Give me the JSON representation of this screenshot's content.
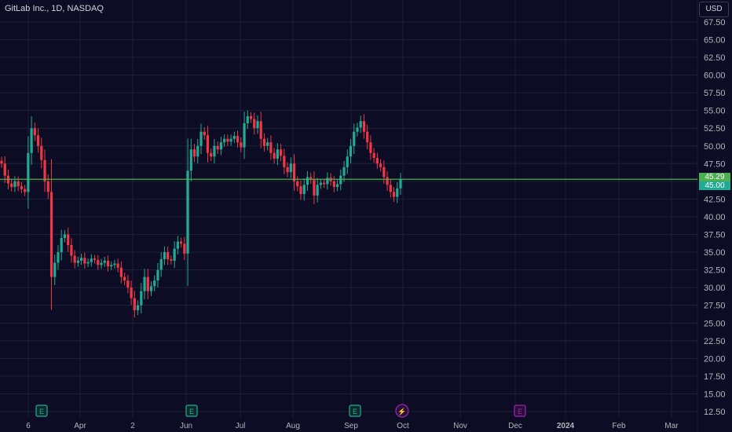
{
  "header": {
    "title": "GitLab Inc., 1D, NASDAQ",
    "currency": "USD"
  },
  "colors": {
    "background": "#0c0d24",
    "grid": "#1d2036",
    "up": "#22ab94",
    "down": "#f23645",
    "price_line": "#4caf50",
    "text": "#b2b5be",
    "earnings": "#22ab94",
    "dividend": "#9c27b0",
    "split": "#9c27b0"
  },
  "price_labels": {
    "last": "45.29",
    "close_marker": "45.00"
  },
  "events": [
    {
      "icon": "earnings-icon",
      "label": "E"
    },
    {
      "icon": "earnings-icon",
      "label": "E"
    },
    {
      "icon": "earnings-icon",
      "label": "E"
    },
    {
      "icon": "split-icon",
      "label": "⚡"
    },
    {
      "icon": "earnings-icon",
      "label": "E"
    }
  ],
  "chart_data": {
    "type": "candlestick",
    "title": "GitLab Inc., 1D, NASDAQ",
    "xlabel": "",
    "ylabel": "",
    "ylim": [
      11.5,
      69
    ],
    "y_ticks": [
      "12.50",
      "15.00",
      "17.50",
      "20.00",
      "22.50",
      "25.00",
      "27.50",
      "30.00",
      "32.50",
      "35.00",
      "37.50",
      "40.00",
      "42.50",
      "45.00",
      "47.50",
      "50.00",
      "52.50",
      "55.00",
      "57.50",
      "60.00",
      "62.50",
      "65.00",
      "67.50"
    ],
    "x_ticks": [
      "6",
      "Apr",
      "2",
      "Jun",
      "Jul",
      "Aug",
      "Sep",
      "Oct",
      "Nov",
      "Dec",
      "2024",
      "Feb",
      "Mar"
    ],
    "horizontal_line": 45.29,
    "grid": true,
    "series": [
      {
        "name": "GitLab",
        "closes": [
          47.5,
          45.8,
          44.7,
          44.2,
          45.0,
          44.3,
          43.9,
          43.5,
          49.0,
          52.5,
          51.5,
          50.0,
          48.0,
          45.0,
          43.5,
          31.5,
          33.5,
          35.0,
          37.0,
          37.5,
          36.0,
          34.5,
          33.5,
          33.8,
          34.2,
          33.4,
          33.6,
          34.1,
          33.9,
          33.2,
          33.5,
          33.8,
          33.0,
          33.2,
          33.4,
          32.8,
          31.5,
          31.0,
          30.0,
          28.5,
          26.8,
          27.5,
          29.5,
          31.5,
          29.5,
          30.2,
          31.0,
          32.5,
          34.0,
          35.0,
          34.0,
          33.8,
          35.5,
          36.5,
          36.2,
          34.8,
          46.5,
          49.5,
          48.5,
          50.0,
          52.0,
          51.5,
          49.0,
          48.5,
          50.0,
          49.5,
          50.5,
          51.0,
          50.6,
          51.0,
          51.4,
          50.5,
          49.8,
          53.2,
          54.2,
          53.8,
          52.5,
          53.5,
          51.0,
          50.0,
          50.5,
          49.0,
          48.2,
          49.5,
          48.6,
          47.0,
          46.3,
          47.5,
          45.0,
          44.3,
          43.2,
          44.5,
          45.6,
          45.2,
          43.0,
          44.5,
          44.8,
          44.6,
          45.5,
          45.0,
          44.2,
          44.6,
          45.8,
          47.0,
          48.5,
          50.0,
          52.0,
          52.6,
          53.5,
          52.0,
          50.5,
          49.0,
          48.3,
          47.5,
          47.0,
          45.6,
          44.5,
          43.5,
          42.8,
          44.0,
          45.3
        ]
      }
    ]
  }
}
